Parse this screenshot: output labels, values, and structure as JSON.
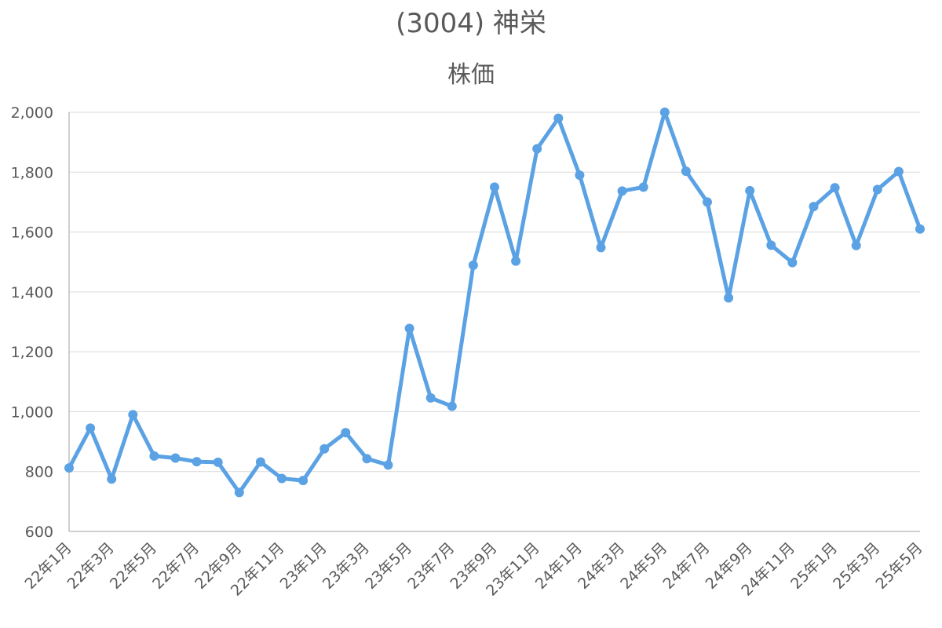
{
  "chart_data": {
    "type": "line",
    "title": "(3004) 神栄",
    "subtitle": "株価",
    "xlabel": "",
    "ylabel": "",
    "ylim": [
      600,
      2000
    ],
    "yticks": [
      600,
      800,
      1000,
      1200,
      1400,
      1600,
      1800,
      2000
    ],
    "ytick_labels": [
      "600",
      "800",
      "1,000",
      "1,200",
      "1,400",
      "1,600",
      "1,800",
      "2,000"
    ],
    "x": [
      "22年1月",
      "22年2月",
      "22年3月",
      "22年4月",
      "22年5月",
      "22年6月",
      "22年7月",
      "22年8月",
      "22年9月",
      "22年10月",
      "22年11月",
      "22年12月",
      "23年1月",
      "23年2月",
      "23年3月",
      "23年4月",
      "23年5月",
      "23年6月",
      "23年7月",
      "23年8月",
      "23年9月",
      "23年10月",
      "23年11月",
      "23年12月",
      "24年1月",
      "24年2月",
      "24年3月",
      "24年4月",
      "24年5月",
      "24年6月",
      "24年7月",
      "24年8月",
      "24年9月",
      "24年10月",
      "24年11月",
      "24年12月",
      "25年1月",
      "25年2月",
      "25年3月",
      "25年4月",
      "25年5月"
    ],
    "xtick_labels": [
      "22年1月",
      "22年3月",
      "22年5月",
      "22年7月",
      "22年9月",
      "22年11月",
      "23年1月",
      "23年3月",
      "23年5月",
      "23年7月",
      "23年9月",
      "23年11月",
      "24年1月",
      "24年3月",
      "24年5月",
      "24年7月",
      "24年9月",
      "24年11月",
      "25年1月",
      "25年3月",
      "25年5月"
    ],
    "series": [
      {
        "name": "",
        "color": "#5ba2e4",
        "values": [
          812,
          945,
          775,
          990,
          852,
          845,
          833,
          831,
          730,
          832,
          777,
          770,
          876,
          930,
          843,
          822,
          1278,
          1046,
          1018,
          1489,
          1750,
          1503,
          1878,
          1980,
          1790,
          1548,
          1737,
          1750,
          2000,
          1803,
          1700,
          1380,
          1738,
          1556,
          1498,
          1685,
          1748,
          1555,
          1742,
          1802,
          1610
        ]
      }
    ],
    "grid": true,
    "legend": "none"
  }
}
